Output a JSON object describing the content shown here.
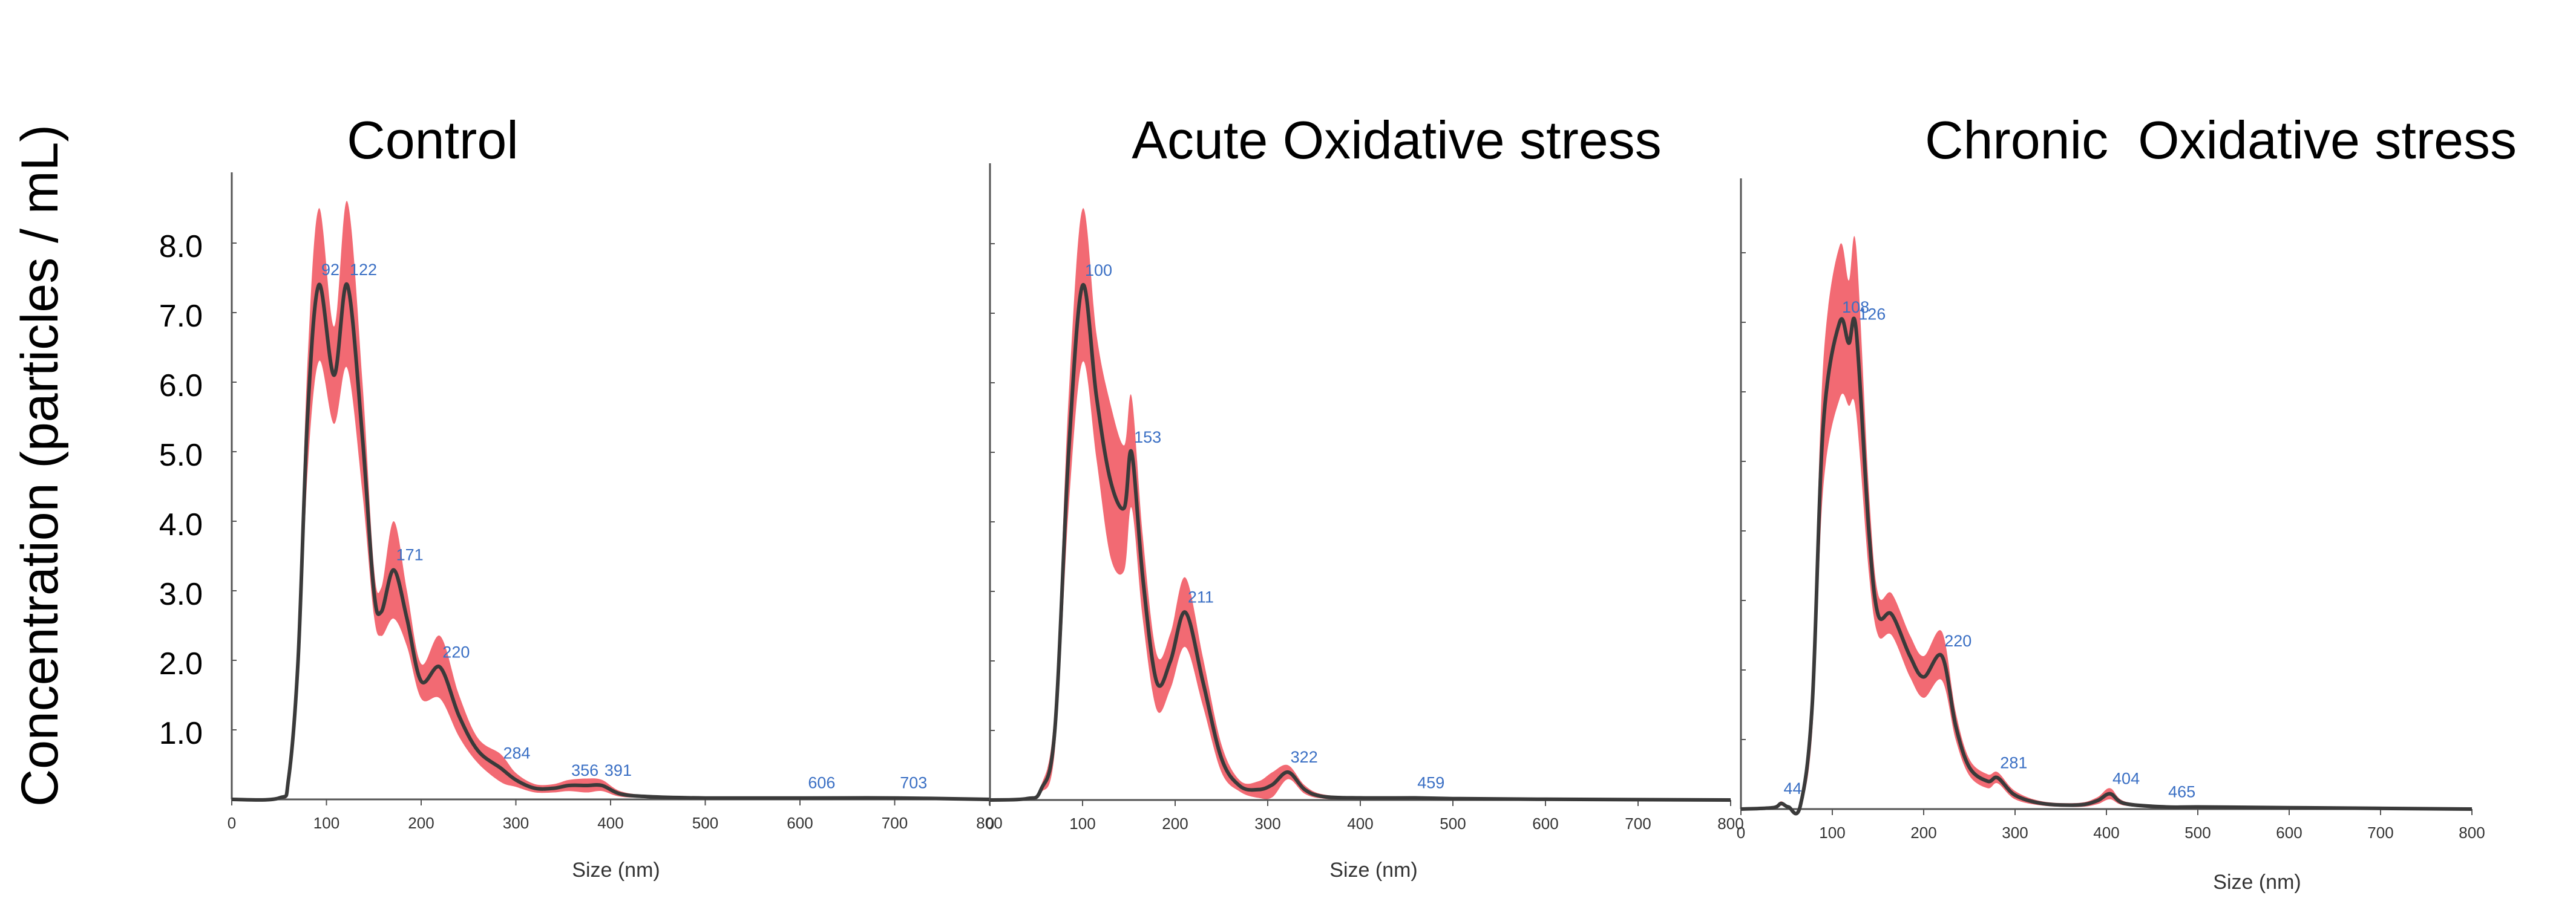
{
  "ylabel": "Concentration (particles / mL)",
  "yticks": [
    "8.0",
    "7.0",
    "6.0",
    "5.0",
    "4.0",
    "3.0",
    "2.0",
    "1.0"
  ],
  "colors": {
    "mean_line": "#3a3a3a",
    "error_band": "#f0505a",
    "peak_label": "#3a6fc4",
    "axis": "#555555"
  },
  "chart_data": [
    {
      "type": "area",
      "title": "Control",
      "xlabel": "Size (nm)",
      "xlim": [
        0,
        800
      ],
      "ylim": [
        0,
        8.5
      ],
      "xticks": [
        0,
        100,
        200,
        300,
        400,
        500,
        600,
        700,
        800
      ],
      "series": [
        {
          "x": [
            0,
            50,
            60,
            70,
            80,
            92,
            108,
            122,
            138,
            150,
            158,
            171,
            185,
            200,
            220,
            240,
            260,
            284,
            300,
            320,
            340,
            356,
            375,
            391,
            410,
            440,
            500,
            606,
            703,
            800
          ],
          "y": [
            0,
            0.02,
            0.3,
            2.0,
            5.5,
            7.4,
            6.1,
            7.4,
            5.2,
            3.0,
            2.7,
            3.3,
            2.6,
            1.7,
            1.9,
            1.2,
            0.7,
            0.45,
            0.28,
            0.16,
            0.16,
            0.2,
            0.2,
            0.2,
            0.08,
            0.04,
            0.02,
            0.02,
            0.02,
            0
          ],
          "err": [
            0,
            0.01,
            0.1,
            0.4,
            0.8,
            1.1,
            0.7,
            1.2,
            0.8,
            0.35,
            0.35,
            0.7,
            0.4,
            0.25,
            0.45,
            0.3,
            0.18,
            0.2,
            0.1,
            0.06,
            0.06,
            0.08,
            0.1,
            0.08,
            0.04,
            0.02,
            0.01,
            0.01,
            0.01,
            0
          ]
        }
      ],
      "peak_labels": [
        {
          "x": 92,
          "y": 7.4,
          "text": "92"
        },
        {
          "x": 122,
          "y": 7.4,
          "text": "122"
        },
        {
          "x": 171,
          "y": 3.3,
          "text": "171"
        },
        {
          "x": 220,
          "y": 1.9,
          "text": "220"
        },
        {
          "x": 284,
          "y": 0.45,
          "text": "284"
        },
        {
          "x": 356,
          "y": 0.2,
          "text": "356"
        },
        {
          "x": 391,
          "y": 0.2,
          "text": "391"
        },
        {
          "x": 606,
          "y": 0.02,
          "text": "606"
        },
        {
          "x": 703,
          "y": 0.02,
          "text": "703"
        }
      ]
    },
    {
      "type": "area",
      "title": "Acute Oxidative stress",
      "xlabel": "Size (nm)",
      "xlim": [
        0,
        800
      ],
      "ylim": [
        0,
        8.5
      ],
      "xticks": [
        0,
        100,
        200,
        300,
        400,
        500,
        600,
        700,
        800
      ],
      "series": [
        {
          "x": [
            0,
            40,
            55,
            70,
            85,
            100,
            115,
            130,
            145,
            153,
            165,
            180,
            195,
            211,
            230,
            250,
            270,
            290,
            305,
            322,
            340,
            360,
            400,
            459,
            500,
            600,
            800
          ],
          "y": [
            0,
            0.02,
            0.15,
            1.0,
            5.0,
            7.4,
            5.8,
            4.6,
            4.2,
            5.0,
            3.2,
            1.7,
            2.0,
            2.7,
            1.7,
            0.6,
            0.2,
            0.15,
            0.22,
            0.4,
            0.15,
            0.05,
            0.03,
            0.03,
            0.02,
            0.01,
            0
          ],
          "err": [
            0,
            0.01,
            0.05,
            0.3,
            0.8,
            1.1,
            0.9,
            1.1,
            0.9,
            0.8,
            0.6,
            0.4,
            0.4,
            0.5,
            0.35,
            0.2,
            0.08,
            0.12,
            0.18,
            0.1,
            0.06,
            0.03,
            0.02,
            0.02,
            0.01,
            0.01,
            0
          ]
        }
      ],
      "peak_labels": [
        {
          "x": 100,
          "y": 7.4,
          "text": "100"
        },
        {
          "x": 153,
          "y": 5.0,
          "text": "153"
        },
        {
          "x": 211,
          "y": 2.7,
          "text": "211"
        },
        {
          "x": 322,
          "y": 0.4,
          "text": "322"
        },
        {
          "x": 459,
          "y": 0.03,
          "text": "459"
        }
      ]
    },
    {
      "type": "area",
      "title": "Chronic  Oxidative stress",
      "xlabel": "Size (nm)",
      "xlim": [
        0,
        800
      ],
      "ylim": [
        0,
        8.5
      ],
      "xticks": [
        0,
        100,
        200,
        300,
        400,
        500,
        600,
        700,
        800
      ],
      "series": [
        {
          "x": [
            0,
            35,
            44,
            52,
            65,
            78,
            90,
            108,
            118,
            126,
            140,
            150,
            165,
            185,
            200,
            220,
            235,
            250,
            270,
            281,
            300,
            330,
            370,
            390,
            404,
            420,
            465,
            500,
            600,
            800
          ],
          "y": [
            0,
            0.02,
            0.08,
            0.03,
            0.05,
            1.5,
            5.5,
            7.0,
            6.7,
            6.9,
            4.0,
            2.8,
            2.8,
            2.2,
            1.9,
            2.2,
            1.2,
            0.6,
            0.4,
            0.45,
            0.2,
            0.08,
            0.06,
            0.12,
            0.22,
            0.08,
            0.03,
            0.03,
            0.02,
            0
          ],
          "err": [
            0,
            0.01,
            0.03,
            0.02,
            0.03,
            0.4,
            0.9,
            1.1,
            0.9,
            1.2,
            0.6,
            0.3,
            0.3,
            0.3,
            0.3,
            0.35,
            0.2,
            0.12,
            0.1,
            0.08,
            0.06,
            0.03,
            0.03,
            0.05,
            0.08,
            0.03,
            0.02,
            0.01,
            0.01,
            0
          ]
        }
      ],
      "peak_labels": [
        {
          "x": 44,
          "y": 0.08,
          "text": "44"
        },
        {
          "x": 108,
          "y": 7.0,
          "text": "108"
        },
        {
          "x": 126,
          "y": 6.9,
          "text": "126"
        },
        {
          "x": 220,
          "y": 2.2,
          "text": "220"
        },
        {
          "x": 281,
          "y": 0.45,
          "text": "281"
        },
        {
          "x": 404,
          "y": 0.22,
          "text": "404"
        },
        {
          "x": 465,
          "y": 0.03,
          "text": "465"
        }
      ]
    }
  ]
}
